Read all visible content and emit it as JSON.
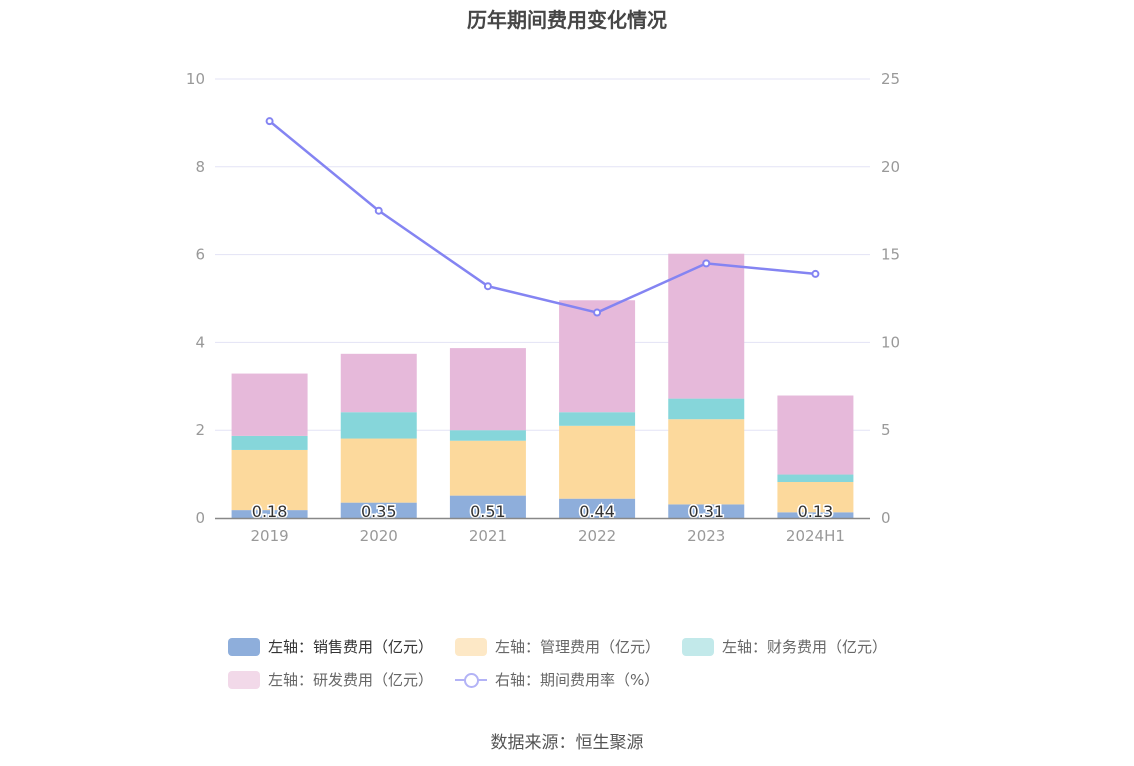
{
  "title": "历年期间费用变化情况",
  "source": "数据来源：恒生聚源",
  "legend": [
    {
      "label": "左轴：销售费用（亿元）",
      "color": "#8eaedb",
      "kind": "bar",
      "active": true
    },
    {
      "label": "左轴：管理费用（亿元）",
      "color": "#fde8c6",
      "kind": "bar",
      "active": false
    },
    {
      "label": "左轴：财务费用（亿元）",
      "color": "#c2e9ea",
      "kind": "bar",
      "active": false
    },
    {
      "label": "左轴：研发费用（亿元）",
      "color": "#f2d9e9",
      "kind": "bar",
      "active": false
    },
    {
      "label": "右轴：期间费用率（%）",
      "color": "#b3b3f6",
      "kind": "line",
      "active": false
    }
  ],
  "chart_data": {
    "type": "bar",
    "title": "历年期间费用变化情况",
    "categories": [
      "2019",
      "2020",
      "2021",
      "2022",
      "2023",
      "2024H1"
    ],
    "left_axis": {
      "ylim": [
        0,
        10
      ],
      "ticks": [
        "0",
        "2",
        "4",
        "6",
        "8",
        "10"
      ]
    },
    "right_axis": {
      "ylim": [
        0,
        25
      ],
      "ticks": [
        "0",
        "5",
        "10",
        "15",
        "20",
        "25"
      ]
    },
    "stacked": true,
    "grid": true,
    "legend_position": "bottom",
    "series": [
      {
        "name": "左轴：销售费用（亿元）",
        "axis": "left",
        "type": "bar",
        "color": "#8eaedb",
        "values": [
          0.18,
          0.35,
          0.51,
          0.44,
          0.31,
          0.13
        ],
        "labels": [
          "0.18",
          "0.35",
          "0.51",
          "0.44",
          "0.31",
          "0.13"
        ]
      },
      {
        "name": "左轴：管理费用（亿元）",
        "axis": "left",
        "type": "bar",
        "color": "#fcd99c",
        "values": [
          1.37,
          1.46,
          1.25,
          1.66,
          1.94,
          0.69
        ]
      },
      {
        "name": "左轴：财务费用（亿元）",
        "axis": "left",
        "type": "bar",
        "color": "#86d6da",
        "values": [
          0.32,
          0.6,
          0.24,
          0.31,
          0.47,
          0.17
        ]
      },
      {
        "name": "左轴：研发费用（亿元）",
        "axis": "left",
        "type": "bar",
        "color": "#e6b9da",
        "values": [
          1.42,
          1.33,
          1.87,
          2.55,
          3.3,
          1.8
        ]
      },
      {
        "name": "右轴：期间费用率（%）",
        "axis": "right",
        "type": "line",
        "color": "#8484f2",
        "values": [
          22.6,
          17.5,
          13.2,
          11.7,
          14.5,
          13.9
        ]
      }
    ]
  }
}
